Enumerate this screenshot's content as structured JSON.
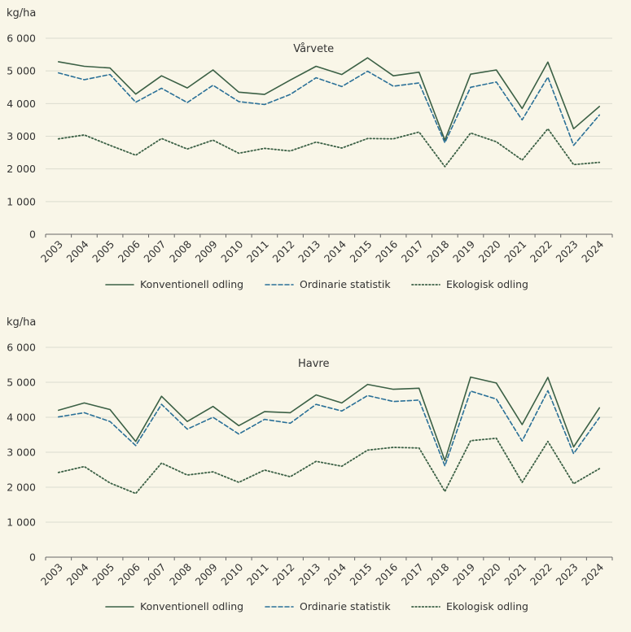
{
  "colors": {
    "background": "#f9f6e8",
    "grid": "#dcdccf",
    "axis": "#666666",
    "conventional": "#3b6045",
    "ordinary": "#2a7097",
    "organic": "#3b6045"
  },
  "legend": {
    "conventional": "Konventionell odling",
    "ordinary": "Ordinarie statistik",
    "organic": "Ekologisk odling"
  },
  "chart_data": [
    {
      "type": "line",
      "title": "Vårvete",
      "ylabel": "kg/ha",
      "ylim": [
        0,
        6000
      ],
      "yticks": [
        0,
        1000,
        2000,
        3000,
        4000,
        5000,
        6000
      ],
      "ytick_labels": [
        "0",
        "1 000",
        "2 000",
        "3 000",
        "4 000",
        "5 000",
        "6 000"
      ],
      "grid": true,
      "legend_position": "bottom",
      "categories": [
        "2003",
        "2004",
        "2005",
        "2006",
        "2007",
        "2008",
        "2009",
        "2010",
        "2011",
        "2012",
        "2013",
        "2014",
        "2015",
        "2016",
        "2017",
        "2018",
        "2019",
        "2020",
        "2021",
        "2022",
        "2023",
        "2024"
      ],
      "series": [
        {
          "name": "Konventionell odling",
          "style": "solid",
          "values": [
            5280,
            5140,
            5090,
            4290,
            4850,
            4480,
            5030,
            4350,
            4280,
            4720,
            5140,
            4890,
            5400,
            4850,
            4960,
            2880,
            4900,
            5030,
            3850,
            5270,
            3230,
            3910
          ]
        },
        {
          "name": "Ordinarie statistik",
          "style": "dashed",
          "values": [
            4940,
            4730,
            4890,
            4040,
            4470,
            4030,
            4560,
            4060,
            3970,
            4280,
            4790,
            4520,
            4990,
            4530,
            4630,
            2800,
            4500,
            4660,
            3500,
            4810,
            2720,
            3650
          ]
        },
        {
          "name": "Ekologisk odling",
          "style": "dotted",
          "values": [
            2920,
            3040,
            2720,
            2420,
            2930,
            2610,
            2880,
            2480,
            2630,
            2550,
            2820,
            2640,
            2930,
            2920,
            3130,
            2070,
            3100,
            2830,
            2270,
            3230,
            2130,
            2200
          ]
        }
      ]
    },
    {
      "type": "line",
      "title": "Havre",
      "ylabel": "kg/ha",
      "ylim": [
        0,
        6000
      ],
      "yticks": [
        0,
        1000,
        2000,
        3000,
        4000,
        5000,
        6000
      ],
      "ytick_labels": [
        "0",
        "1 000",
        "2 000",
        "3 000",
        "4 000",
        "5 000",
        "6 000"
      ],
      "grid": true,
      "legend_position": "bottom",
      "categories": [
        "2003",
        "2004",
        "2005",
        "2006",
        "2007",
        "2008",
        "2009",
        "2010",
        "2011",
        "2012",
        "2013",
        "2014",
        "2015",
        "2016",
        "2017",
        "2018",
        "2019",
        "2020",
        "2021",
        "2022",
        "2023",
        "2024"
      ],
      "series": [
        {
          "name": "Konventionell odling",
          "style": "solid",
          "values": [
            4200,
            4410,
            4220,
            3310,
            4600,
            3880,
            4310,
            3760,
            4160,
            4130,
            4640,
            4410,
            4940,
            4800,
            4830,
            2760,
            5150,
            4980,
            3790,
            5140,
            3150,
            4270
          ]
        },
        {
          "name": "Ordinarie statistik",
          "style": "dashed",
          "values": [
            4010,
            4130,
            3880,
            3190,
            4370,
            3660,
            4000,
            3520,
            3940,
            3830,
            4370,
            4180,
            4620,
            4450,
            4490,
            2610,
            4750,
            4520,
            3320,
            4760,
            2960,
            3990
          ]
        },
        {
          "name": "Ekologisk odling",
          "style": "dotted",
          "values": [
            2420,
            2590,
            2120,
            1820,
            2690,
            2350,
            2440,
            2140,
            2490,
            2300,
            2740,
            2600,
            3060,
            3140,
            3120,
            1880,
            3330,
            3400,
            2140,
            3310,
            2100,
            2530
          ]
        }
      ]
    }
  ]
}
